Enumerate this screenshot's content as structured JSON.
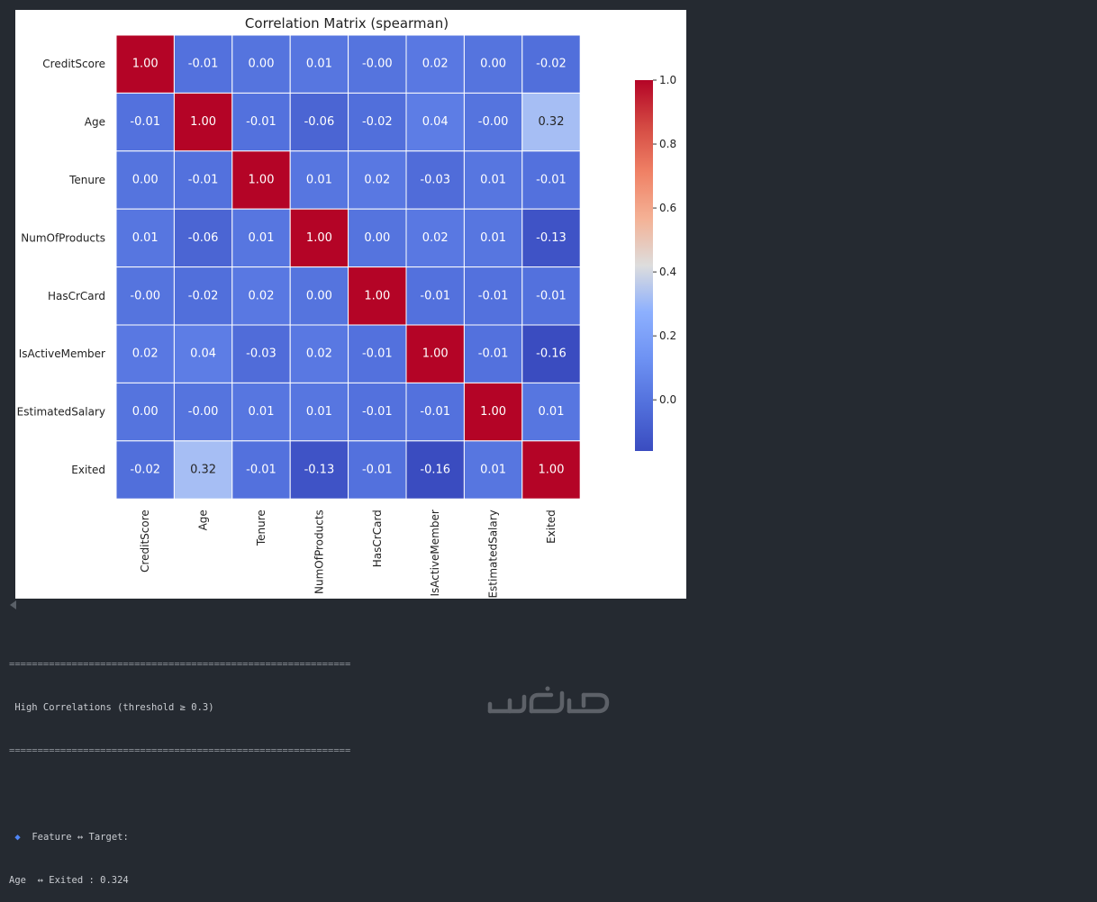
{
  "chart_data": {
    "type": "heatmap",
    "title": "Correlation Matrix (spearman)",
    "labels": [
      "CreditScore",
      "Age",
      "Tenure",
      "NumOfProducts",
      "HasCrCard",
      "IsActiveMember",
      "EstimatedSalary",
      "Exited"
    ],
    "display_values": [
      [
        "1.00",
        "-0.01",
        "0.00",
        "0.01",
        "-0.00",
        "0.02",
        "0.00",
        "-0.02"
      ],
      [
        "-0.01",
        "1.00",
        "-0.01",
        "-0.06",
        "-0.02",
        "0.04",
        "-0.00",
        "0.32"
      ],
      [
        "0.00",
        "-0.01",
        "1.00",
        "0.01",
        "0.02",
        "-0.03",
        "0.01",
        "-0.01"
      ],
      [
        "0.01",
        "-0.06",
        "0.01",
        "1.00",
        "0.00",
        "0.02",
        "0.01",
        "-0.13"
      ],
      [
        "-0.00",
        "-0.02",
        "0.02",
        "0.00",
        "1.00",
        "-0.01",
        "-0.01",
        "-0.01"
      ],
      [
        "0.02",
        "0.04",
        "-0.03",
        "0.02",
        "-0.01",
        "1.00",
        "-0.01",
        "-0.16"
      ],
      [
        "0.00",
        "-0.00",
        "0.01",
        "0.01",
        "-0.01",
        "-0.01",
        "1.00",
        "0.01"
      ],
      [
        "-0.02",
        "0.32",
        "-0.01",
        "-0.13",
        "-0.01",
        "-0.16",
        "0.01",
        "1.00"
      ]
    ],
    "colorbar": {
      "min": -0.16,
      "max": 1.0,
      "ticks": [
        "1.0",
        "0.8",
        "0.6",
        "0.4",
        "0.2",
        "0.0"
      ],
      "tick_values": [
        1.0,
        0.8,
        0.6,
        0.4,
        0.2,
        0.0
      ],
      "colormap": "coolwarm"
    },
    "grid": true
  },
  "console": {
    "separator": "============================================================",
    "heading": " High Correlations (threshold ≥ 0.3)",
    "section_label": "Feature ↔ Target:",
    "result": "Age  ↔ Exited : 0.324"
  },
  "colors": {
    "background": "#252a31",
    "figure_bg": "#ffffff",
    "accent_diamond": "#4f86f7"
  }
}
